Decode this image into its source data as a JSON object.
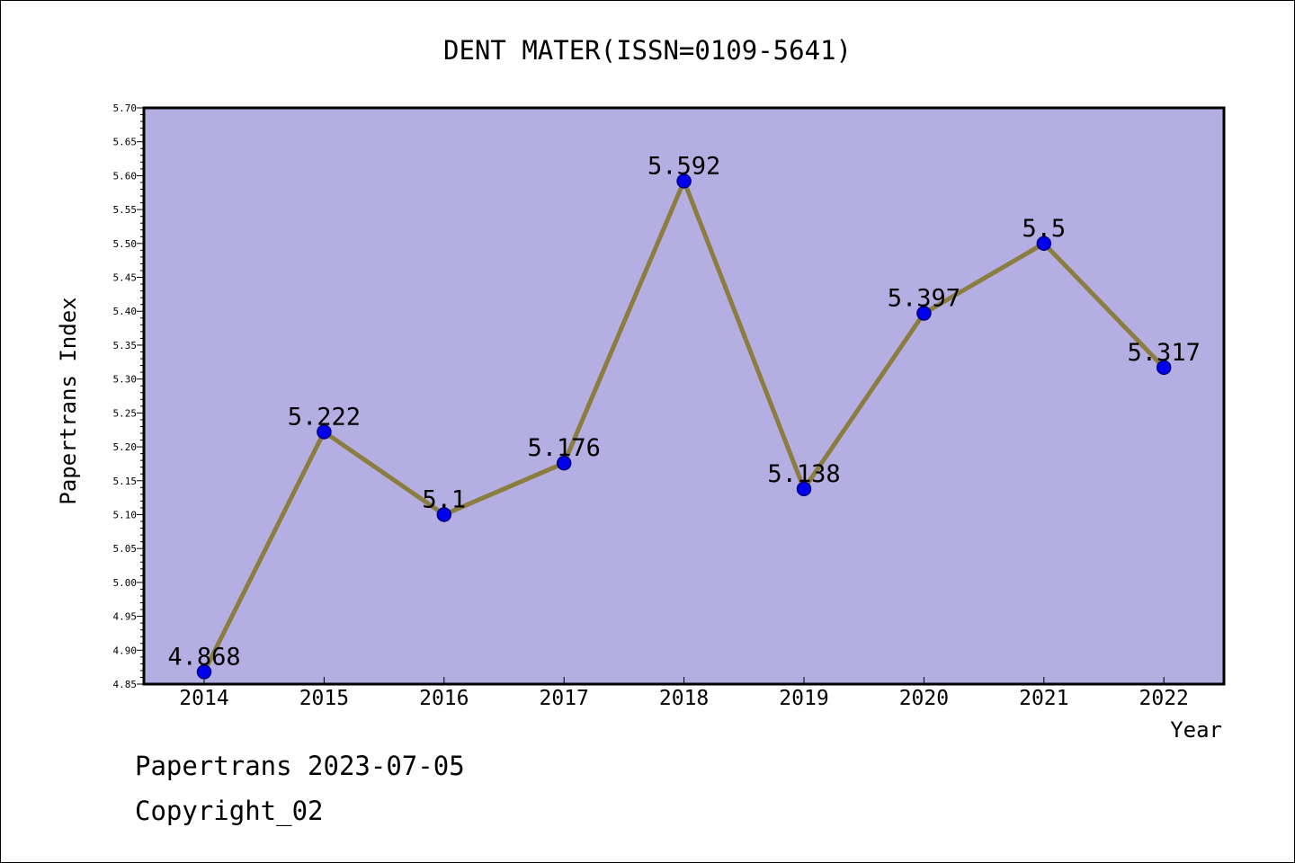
{
  "chart_data": {
    "type": "line",
    "title": "DENT MATER(ISSN=0109-5641)",
    "xlabel": "Year",
    "ylabel": "Papertrans Index",
    "categories": [
      "2014",
      "2015",
      "2016",
      "2017",
      "2018",
      "2019",
      "2020",
      "2021",
      "2022"
    ],
    "values": [
      4.868,
      5.222,
      5.1,
      5.176,
      5.592,
      5.138,
      5.397,
      5.5,
      5.317
    ],
    "data_labels": [
      "4.868",
      "5.222",
      "5.1",
      "5.176",
      "5.592",
      "5.138",
      "5.397",
      "5.5",
      "5.317"
    ],
    "ylim": [
      4.85,
      5.7
    ],
    "yticks": [
      "4.85",
      "4.90",
      "4.95",
      "5.00",
      "5.05",
      "5.10",
      "5.15",
      "5.20",
      "5.25",
      "5.30",
      "5.35",
      "5.40",
      "5.45",
      "5.50",
      "5.55",
      "5.60",
      "5.65",
      "5.70"
    ],
    "grid": false,
    "legend": "none",
    "colors": {
      "plot_background": "#b5aee2",
      "line": "#8b7d3f",
      "marker": "#0000ee",
      "marker_edge": "#00007a",
      "axis": "#000000"
    }
  },
  "footer": {
    "line1": "Papertrans 2023-07-05",
    "line2": "Copyright_02"
  }
}
